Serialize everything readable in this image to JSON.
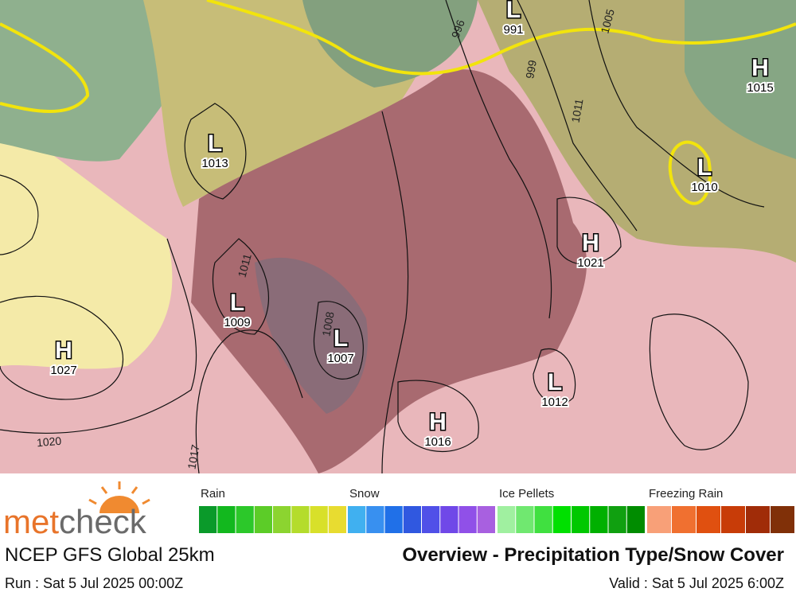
{
  "map": {
    "pressure_centers": [
      {
        "type": "H",
        "value": 1015
      },
      {
        "type": "L",
        "value": 991
      },
      {
        "type": "L",
        "value": 1013
      },
      {
        "type": "L",
        "value": 1010
      },
      {
        "type": "H",
        "value": 1021
      },
      {
        "type": "L",
        "value": 1009
      },
      {
        "type": "L",
        "value": 1007
      },
      {
        "type": "H",
        "value": 1027
      },
      {
        "type": "L",
        "value": 1012
      },
      {
        "type": "H",
        "value": 1016
      }
    ],
    "isobar_labels": [
      1020,
      1017,
      1011,
      1008,
      1005,
      999,
      996,
      1011
    ]
  },
  "legend": [
    {
      "label": "Rain",
      "colors": [
        "#0a9a2a",
        "#12b81e",
        "#2cc82a",
        "#5ccc28",
        "#8cd430",
        "#b4dc2c",
        "#d8e02a",
        "#e8dc30"
      ]
    },
    {
      "label": "Snow",
      "colors": [
        "#40b0f0",
        "#3890f0",
        "#2070e8",
        "#3058e0",
        "#5050e8",
        "#7048e8",
        "#9050e8",
        "#a860e0"
      ]
    },
    {
      "label": "Ice Pellets",
      "colors": [
        "#a0f0a0",
        "#70e870",
        "#40e040",
        "#00e000",
        "#00c800",
        "#00b000",
        "#10a010",
        "#008c00"
      ]
    },
    {
      "label": "Freezing Rain",
      "colors": [
        "#f8a078",
        "#f07030",
        "#e05010",
        "#c83c08",
        "#a02c08",
        "#803008"
      ]
    }
  ],
  "footer": {
    "logo": [
      "met",
      "check"
    ],
    "model": "NCEP GFS Global 25km",
    "product": "Overview - Precipitation Type/Snow Cover",
    "run": "Run : Sat 5 Jul 2025 00:00Z",
    "valid": "Valid : Sat 5 Jul 2025 6:00Z"
  }
}
